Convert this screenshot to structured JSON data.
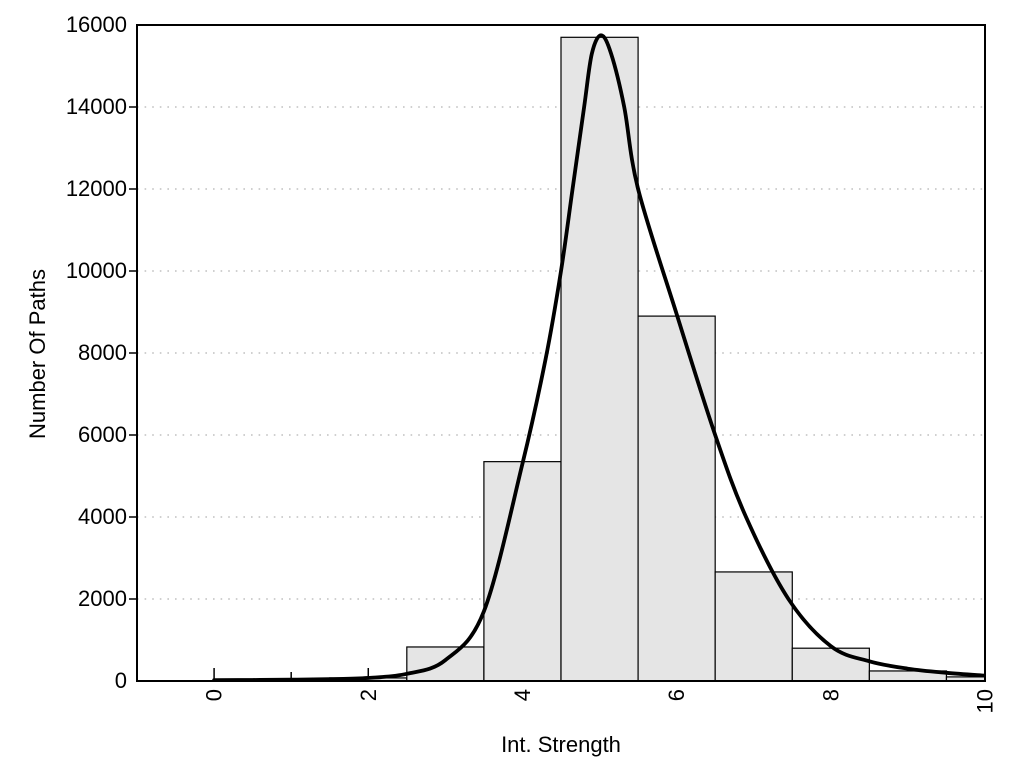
{
  "chart_data": {
    "type": "bar",
    "subtype": "histogram_with_fit_curve",
    "xlabel": "Int. Strength",
    "ylabel": "Number Of Paths",
    "xlim": [
      -1,
      10
    ],
    "ylim": [
      0,
      16000
    ],
    "grid": "horizontal-dotted",
    "legend_position": "none",
    "x_major_ticks": [
      0,
      2,
      4,
      6,
      8,
      10
    ],
    "x_major_tick_labels": [
      "0",
      "2",
      "4",
      "6",
      "8",
      "10"
    ],
    "x_minor_ticks": [
      1,
      3,
      5,
      7,
      9
    ],
    "y_tick_values": [
      0,
      2000,
      4000,
      6000,
      8000,
      10000,
      12000,
      14000,
      16000
    ],
    "y_tick_labels": [
      "0",
      "2000",
      "4000",
      "6000",
      "8000",
      "10000",
      "12000",
      "14000",
      "16000"
    ],
    "y_grid_values": [
      2000,
      4000,
      6000,
      8000,
      10000,
      12000,
      14000
    ],
    "bars": {
      "bin_width": 1,
      "centers": [
        2,
        3,
        4,
        5,
        6,
        7,
        8,
        9,
        10
      ],
      "values": [
        75,
        830,
        5350,
        15700,
        8900,
        2660,
        800,
        245,
        100
      ]
    },
    "fit_curve": {
      "description": "skewed peak fit, maximum ~15750 at x~5.0",
      "points": [
        [
          0,
          20
        ],
        [
          0.5,
          25
        ],
        [
          1,
          32
        ],
        [
          1.5,
          45
        ],
        [
          2,
          75
        ],
        [
          2.5,
          175
        ],
        [
          3,
          510
        ],
        [
          3.5,
          1700
        ],
        [
          4,
          5300
        ],
        [
          4.3,
          7850
        ],
        [
          4.5,
          10000
        ],
        [
          4.65,
          12000
        ],
        [
          4.8,
          14000
        ],
        [
          4.9,
          15300
        ],
        [
          5.02,
          15750
        ],
        [
          5.15,
          15300
        ],
        [
          5.32,
          14000
        ],
        [
          5.5,
          12000
        ],
        [
          6.0,
          8950
        ],
        [
          6.5,
          6000
        ],
        [
          6.9,
          4000
        ],
        [
          7.45,
          2000
        ],
        [
          8,
          850
        ],
        [
          8.5,
          480
        ],
        [
          9,
          300
        ],
        [
          9.5,
          200
        ],
        [
          10,
          130
        ]
      ]
    },
    "colors": {
      "bar_fill": "#e5e5e5",
      "bar_border": "#000000",
      "curve": "#000000",
      "frame": "#000000",
      "grid": "#c0c0c0",
      "background": "#ffffff"
    }
  }
}
